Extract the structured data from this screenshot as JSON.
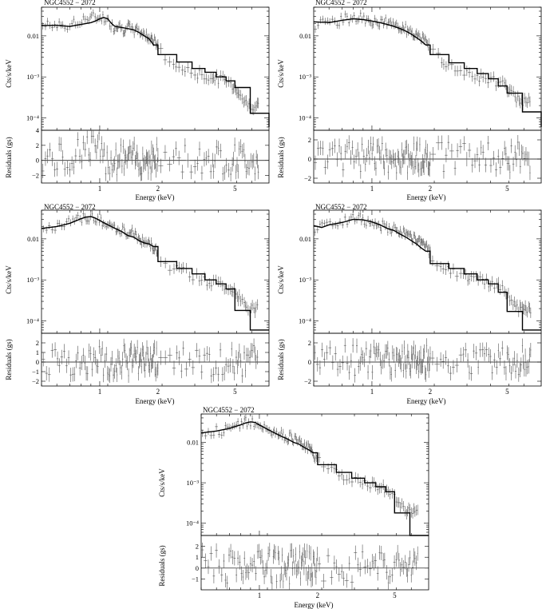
{
  "figure": {
    "panel_title": "NGC4552 − 2072",
    "ylabel_top": "Cts/s/keV",
    "ylabel_bottom": "Residuals (gs)",
    "xlabel": "Energy (keV)"
  },
  "chart_data": [
    {
      "type": "line",
      "title": "NGC4552 − 2072",
      "xlabel": "Energy (keV)",
      "ylabel": "Cts/s/keV",
      "xscale": "log",
      "yscale": "log",
      "xlim": [
        0.5,
        7.5
      ],
      "ylim": [
        5e-05,
        0.05
      ],
      "x_ticks": [
        "1",
        "2",
        "5"
      ],
      "y_ticks": [
        "0.01",
        "10⁻³",
        "10⁻⁴"
      ],
      "residuals": {
        "ylabel": "Residuals (gs)",
        "ylim": [
          -3,
          4
        ],
        "ticks": [
          "−2",
          "0",
          "2",
          "4"
        ]
      },
      "model": {
        "x": [
          0.5,
          0.6,
          0.7,
          0.8,
          0.9,
          0.95,
          1.0,
          1.05,
          1.1,
          1.15,
          1.2,
          1.3,
          1.4,
          1.5,
          1.6,
          1.7,
          1.8,
          1.9,
          2.0,
          2.5,
          3.0,
          3.5,
          4.0,
          4.5,
          5.0,
          6.0,
          7.5
        ],
        "y": [
          0.018,
          0.018,
          0.017,
          0.019,
          0.021,
          0.023,
          0.026,
          0.028,
          0.026,
          0.02,
          0.017,
          0.016,
          0.015,
          0.014,
          0.012,
          0.01,
          0.0085,
          0.006,
          0.0035,
          0.0023,
          0.0016,
          0.0013,
          0.001,
          0.0008,
          0.00055,
          0.00013,
          6e-05
        ]
      },
      "data": {
        "x": [
          0.52,
          0.56,
          0.6,
          0.64,
          0.68,
          0.72,
          0.76,
          0.8,
          0.84,
          0.88,
          0.92,
          0.96,
          1.0,
          1.04,
          1.08,
          1.12,
          1.18,
          1.25,
          1.32,
          1.4,
          1.48,
          1.56,
          1.65,
          1.75,
          1.85,
          1.95,
          2.1,
          2.3,
          2.5,
          2.8,
          3.1,
          3.4,
          3.8,
          4.2,
          4.6,
          5.1,
          5.8
        ],
        "y": [
          0.017,
          0.021,
          0.016,
          0.02,
          0.015,
          0.022,
          0.018,
          0.025,
          0.028,
          0.024,
          0.03,
          0.026,
          0.031,
          0.027,
          0.025,
          0.021,
          0.016,
          0.019,
          0.014,
          0.017,
          0.013,
          0.014,
          0.012,
          0.01,
          0.009,
          0.0065,
          0.004,
          0.0022,
          0.0018,
          0.0014,
          0.0012,
          0.0011,
          0.0009,
          0.0009,
          0.00075,
          0.0005,
          0.0002
        ]
      }
    },
    {
      "type": "line",
      "title": "NGC4552 − 2072",
      "xlabel": "Energy (keV)",
      "ylabel": "Cts/s/keV",
      "xscale": "log",
      "yscale": "log",
      "xlim": [
        0.5,
        7.5
      ],
      "ylim": [
        5e-05,
        0.05
      ],
      "x_ticks": [
        "1",
        "2",
        "5"
      ],
      "y_ticks": [
        "0.01",
        "10⁻³",
        "10⁻⁴"
      ],
      "residuals": {
        "ylabel": "Residuals (gs)",
        "ylim": [
          -2.5,
          3
        ],
        "ticks": [
          "−2",
          "0",
          "2"
        ]
      },
      "model": {
        "x": [
          0.5,
          0.6,
          0.7,
          0.8,
          0.9,
          1.0,
          1.1,
          1.2,
          1.3,
          1.4,
          1.5,
          1.6,
          1.7,
          1.8,
          1.9,
          2.0,
          2.5,
          3.0,
          3.5,
          4.0,
          4.5,
          5.0,
          6.0,
          7.5
        ],
        "y": [
          0.022,
          0.021,
          0.024,
          0.026,
          0.025,
          0.023,
          0.021,
          0.019,
          0.017,
          0.015,
          0.013,
          0.011,
          0.009,
          0.0075,
          0.006,
          0.0035,
          0.0022,
          0.0016,
          0.0012,
          0.0009,
          0.0006,
          0.0004,
          0.00014,
          6e-05
        ]
      },
      "data": {
        "x": [
          0.52,
          0.56,
          0.6,
          0.64,
          0.68,
          0.72,
          0.76,
          0.8,
          0.84,
          0.88,
          0.92,
          0.96,
          1.0,
          1.05,
          1.1,
          1.16,
          1.22,
          1.3,
          1.38,
          1.46,
          1.55,
          1.65,
          1.75,
          1.85,
          1.95,
          2.1,
          2.3,
          2.5,
          2.8,
          3.1,
          3.4,
          3.8,
          4.2,
          4.6,
          5.1,
          5.8
        ],
        "y": [
          0.018,
          0.023,
          0.02,
          0.025,
          0.022,
          0.028,
          0.024,
          0.032,
          0.027,
          0.03,
          0.024,
          0.028,
          0.022,
          0.025,
          0.019,
          0.023,
          0.018,
          0.02,
          0.015,
          0.017,
          0.012,
          0.011,
          0.0095,
          0.008,
          0.0065,
          0.004,
          0.0025,
          0.0019,
          0.0015,
          0.0012,
          0.001,
          0.0009,
          0.0008,
          0.0007,
          0.0005,
          0.00025
        ]
      }
    },
    {
      "type": "line",
      "title": "NGC4552 − 2072",
      "xlabel": "Energy (keV)",
      "ylabel": "Cts/s/keV",
      "xscale": "log",
      "yscale": "log",
      "xlim": [
        0.5,
        7.5
      ],
      "ylim": [
        5e-05,
        0.05
      ],
      "x_ticks": [
        "1",
        "2",
        "5"
      ],
      "y_ticks": [
        "0.01",
        "10⁻³",
        "10⁻⁴"
      ],
      "residuals": {
        "ylabel": "Residuals (gs)",
        "ylim": [
          -2.5,
          3
        ],
        "ticks": [
          "−2",
          "−1",
          "0",
          "1",
          "2"
        ]
      },
      "model": {
        "x": [
          0.5,
          0.6,
          0.7,
          0.8,
          0.85,
          0.9,
          0.95,
          1.0,
          1.1,
          1.2,
          1.3,
          1.4,
          1.5,
          1.6,
          1.7,
          1.8,
          1.9,
          2.0,
          2.5,
          3.0,
          3.5,
          4.0,
          4.5,
          5.0,
          6.0,
          7.5
        ],
        "y": [
          0.018,
          0.02,
          0.024,
          0.031,
          0.034,
          0.035,
          0.032,
          0.028,
          0.022,
          0.018,
          0.015,
          0.012,
          0.011,
          0.009,
          0.008,
          0.0075,
          0.0065,
          0.0028,
          0.0019,
          0.0014,
          0.001,
          0.0008,
          0.0006,
          0.00018,
          6e-05,
          6e-05
        ]
      },
      "data": {
        "x": [
          0.52,
          0.56,
          0.6,
          0.64,
          0.68,
          0.72,
          0.76,
          0.8,
          0.84,
          0.88,
          0.92,
          0.96,
          1.0,
          1.05,
          1.1,
          1.16,
          1.22,
          1.3,
          1.38,
          1.46,
          1.55,
          1.65,
          1.75,
          1.85,
          1.95,
          2.1,
          2.3,
          2.5,
          2.8,
          3.1,
          3.4,
          3.8,
          4.2,
          4.6,
          5.1,
          5.8
        ],
        "y": [
          0.017,
          0.019,
          0.021,
          0.02,
          0.026,
          0.024,
          0.03,
          0.029,
          0.036,
          0.03,
          0.033,
          0.027,
          0.03,
          0.023,
          0.021,
          0.02,
          0.016,
          0.017,
          0.013,
          0.015,
          0.011,
          0.009,
          0.0085,
          0.0075,
          0.005,
          0.0032,
          0.0022,
          0.0019,
          0.0015,
          0.0012,
          0.001,
          0.0009,
          0.0008,
          0.0007,
          0.00045,
          0.0002
        ]
      }
    },
    {
      "type": "line",
      "title": "NGC4552 − 2072",
      "xlabel": "Energy (keV)",
      "ylabel": "Cts/s/keV",
      "xscale": "log",
      "yscale": "log",
      "xlim": [
        0.5,
        7.5
      ],
      "ylim": [
        5e-05,
        0.05
      ],
      "x_ticks": [
        "1",
        "2",
        "5"
      ],
      "y_ticks": [
        "0.01",
        "10⁻³",
        "10⁻⁴"
      ],
      "residuals": {
        "ylabel": "Residuals (gs)",
        "ylim": [
          -2.5,
          3
        ],
        "ticks": [
          "−2",
          "0",
          "2"
        ]
      },
      "model": {
        "x": [
          0.5,
          0.55,
          0.6,
          0.7,
          0.8,
          0.9,
          1.0,
          1.1,
          1.2,
          1.3,
          1.4,
          1.5,
          1.6,
          1.7,
          1.8,
          1.9,
          2.0,
          2.5,
          3.0,
          3.5,
          4.0,
          4.5,
          5.0,
          6.0,
          7.5
        ],
        "y": [
          0.021,
          0.019,
          0.022,
          0.025,
          0.03,
          0.029,
          0.026,
          0.022,
          0.018,
          0.016,
          0.013,
          0.011,
          0.009,
          0.0075,
          0.006,
          0.005,
          0.0025,
          0.0019,
          0.0014,
          0.001,
          0.0008,
          0.0005,
          0.00017,
          6e-05,
          6e-05
        ]
      },
      "data": {
        "x": [
          0.52,
          0.56,
          0.6,
          0.64,
          0.68,
          0.72,
          0.76,
          0.8,
          0.84,
          0.88,
          0.92,
          0.96,
          1.0,
          1.05,
          1.1,
          1.16,
          1.22,
          1.3,
          1.38,
          1.46,
          1.55,
          1.65,
          1.75,
          1.85,
          1.95,
          2.1,
          2.3,
          2.5,
          2.8,
          3.1,
          3.4,
          3.8,
          4.2,
          4.6,
          5.1,
          5.8
        ],
        "y": [
          0.018,
          0.024,
          0.02,
          0.026,
          0.023,
          0.031,
          0.027,
          0.035,
          0.03,
          0.033,
          0.026,
          0.03,
          0.024,
          0.026,
          0.02,
          0.022,
          0.017,
          0.018,
          0.014,
          0.015,
          0.011,
          0.01,
          0.0082,
          0.007,
          0.0055,
          0.003,
          0.002,
          0.0018,
          0.0014,
          0.0012,
          0.001,
          0.0009,
          0.0008,
          0.0007,
          0.0004,
          0.0002
        ]
      }
    },
    {
      "type": "line",
      "title": "NGC4552 − 2072",
      "xlabel": "Energy (keV)",
      "ylabel": "Cts/s/keV",
      "xscale": "log",
      "yscale": "log",
      "xlim": [
        0.5,
        7.5
      ],
      "ylim": [
        5e-05,
        0.05
      ],
      "x_ticks": [
        "1",
        "2",
        "5"
      ],
      "y_ticks": [
        "0.01",
        "10⁻³",
        "10⁻⁴"
      ],
      "residuals": {
        "ylabel": "Residuals (gs)",
        "ylim": [
          -2,
          3
        ],
        "ticks": [
          "−1",
          "0",
          "1",
          "2"
        ]
      },
      "model": {
        "x": [
          0.5,
          0.6,
          0.7,
          0.8,
          0.85,
          0.9,
          0.95,
          1.0,
          1.1,
          1.2,
          1.3,
          1.4,
          1.5,
          1.6,
          1.7,
          1.8,
          1.9,
          2.0,
          2.5,
          3.0,
          3.5,
          4.0,
          4.5,
          5.0,
          6.0,
          7.5
        ],
        "y": [
          0.017,
          0.019,
          0.022,
          0.027,
          0.03,
          0.032,
          0.031,
          0.027,
          0.021,
          0.017,
          0.014,
          0.012,
          0.01,
          0.009,
          0.0075,
          0.0065,
          0.0055,
          0.0028,
          0.0018,
          0.0013,
          0.001,
          0.0008,
          0.0006,
          0.00018,
          5e-05,
          5e-05
        ]
      },
      "data": {
        "x": [
          0.52,
          0.56,
          0.6,
          0.64,
          0.68,
          0.72,
          0.76,
          0.8,
          0.84,
          0.88,
          0.92,
          0.96,
          1.0,
          1.05,
          1.1,
          1.16,
          1.22,
          1.3,
          1.38,
          1.46,
          1.55,
          1.65,
          1.75,
          1.85,
          1.95,
          2.1,
          2.3,
          2.5,
          2.8,
          3.1,
          3.4,
          3.8,
          4.2,
          4.6,
          5.1,
          5.8
        ],
        "y": [
          0.016,
          0.018,
          0.02,
          0.019,
          0.024,
          0.022,
          0.028,
          0.026,
          0.033,
          0.029,
          0.034,
          0.028,
          0.031,
          0.024,
          0.022,
          0.019,
          0.017,
          0.016,
          0.013,
          0.014,
          0.011,
          0.009,
          0.008,
          0.007,
          0.0045,
          0.003,
          0.002,
          0.0017,
          0.0014,
          0.0012,
          0.001,
          0.0009,
          0.0008,
          0.0007,
          0.0004,
          0.0002
        ]
      }
    }
  ]
}
